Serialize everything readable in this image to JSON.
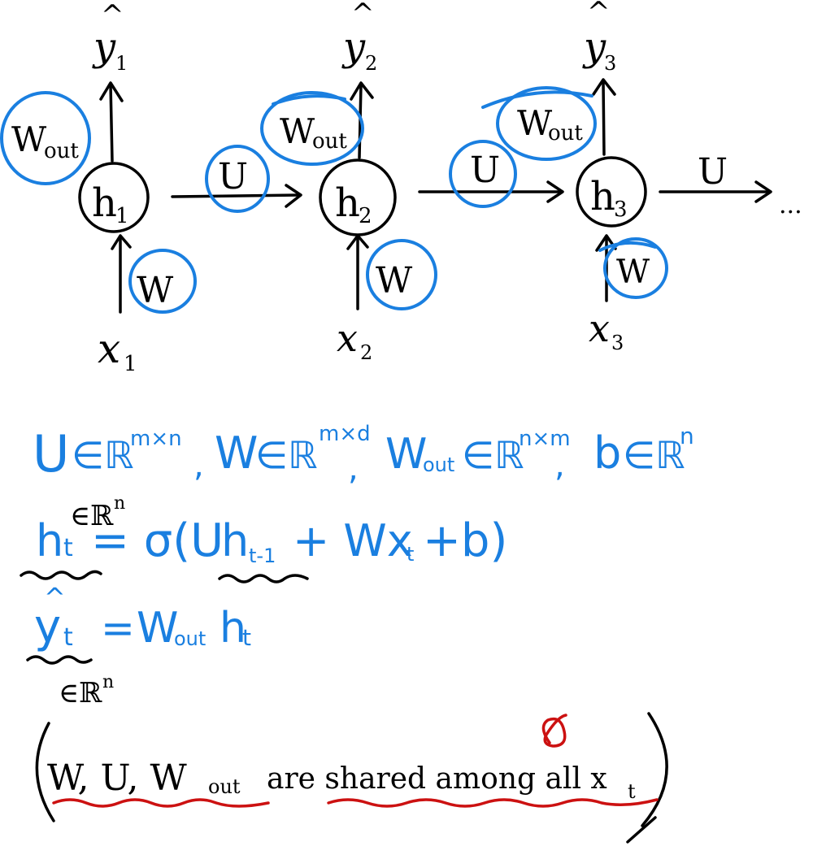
{
  "colors": {
    "ink": "#000000",
    "blue": "#1a7fe0",
    "red": "#cc1111"
  },
  "nodes": [
    {
      "label": "h",
      "sub": "1",
      "input": "x",
      "input_sub": "1",
      "output": "y",
      "output_sub": "1"
    },
    {
      "label": "h",
      "sub": "2",
      "input": "x",
      "input_sub": "2",
      "output": "y",
      "output_sub": "2"
    },
    {
      "label": "h",
      "sub": "3",
      "input": "x",
      "input_sub": "3",
      "output": "y",
      "output_sub": "3"
    }
  ],
  "output_hat": "^",
  "weights": {
    "out": "W",
    "out_sub": "out",
    "rec": "U",
    "in": "W"
  },
  "ellipsis": "...",
  "eq1": {
    "U": "U",
    "in": "∈ℝ",
    "U_dim": "m×n",
    "sep": ",",
    "W": "W",
    "W_dim": "m×d",
    "Wout": "W",
    "Wout_sub": "out",
    "Wout_dim": "n×m",
    "b": "b",
    "b_dim": "n"
  },
  "eq2": {
    "annot": "∈ℝ",
    "annot_sup": "n",
    "lhs": "h",
    "lhs_sub": "t",
    "rhs_a": "= σ(U",
    "rhs_h": "h",
    "rhs_h_sub": "t-1",
    "rhs_b": "+ Wx",
    "rhs_x_sub": "t",
    "rhs_c": "+b)"
  },
  "eq3": {
    "hat": "^",
    "lhs": "y",
    "lhs_sub": "t",
    "eq": "=",
    "rhs_W": "W",
    "rhs_W_sub": "out",
    "rhs_h": "h",
    "rhs_h_sub": "t",
    "annot": "∈ℝ",
    "annot_sup": "n"
  },
  "note": {
    "lparen": "(",
    "rparen": ")",
    "shared": "W, U, W",
    "shared_sub": "out",
    "text": "are shared among all x",
    "text_sub": "t"
  }
}
